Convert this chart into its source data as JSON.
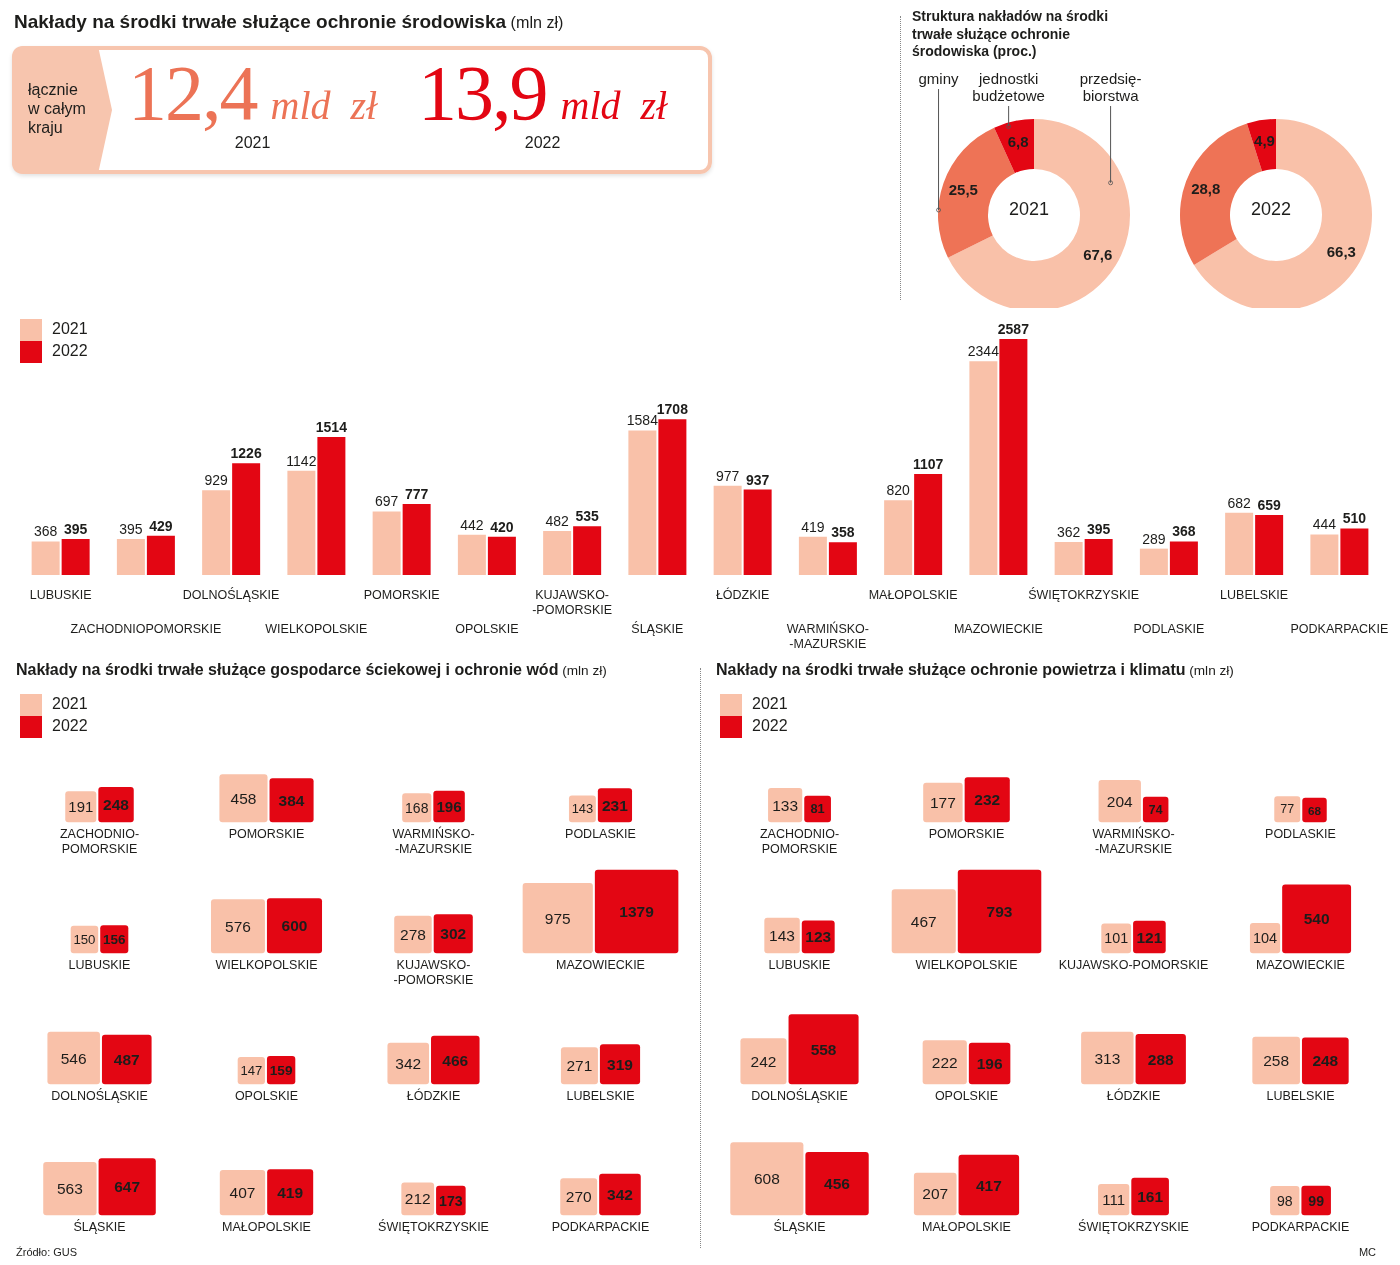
{
  "chart_data": [
    {
      "type": "other",
      "title": "Nakłady na środki trwałe służące ochronie środowiska (mln zł)",
      "annotations": [
        "łącznie w całym kraju",
        "12,4 mld zł",
        "2021",
        "13,9 mld zł",
        "2022"
      ]
    },
    {
      "type": "donut",
      "title": "Struktura nakładów na środki trwałe służące ochronie środowiska (proc.)",
      "categories": [
        "przedsię-\nbiorstwa",
        "gminy",
        "jednostki\nbudżetowe"
      ],
      "values": [
        67.6,
        25.5,
        6.8
      ],
      "colors": [
        "#f9c1a9",
        "#ee7356",
        "#e30613"
      ],
      "value_labels": [
        "67,6",
        "25,5",
        "6,8"
      ],
      "annotations": [
        "2021"
      ]
    },
    {
      "type": "donut",
      "categories": [
        null,
        null,
        null
      ],
      "values": [
        66.3,
        28.8,
        4.9
      ],
      "colors": [
        "#f9c1a9",
        "#ee7356",
        "#e30613"
      ],
      "value_labels": [
        "66,3",
        "28,8",
        "4,9"
      ],
      "annotations": [
        "2022"
      ]
    },
    {
      "type": "bar",
      "categories": [
        "LUBUSKIE",
        "ZACHODNIOPOMORSKIE",
        "DOLNOŚLĄSKIE",
        "WIELKOPOLSKIE",
        "POMORSKIE",
        "OPOLSKIE",
        "KUJAWSKO-\n-POMORSKIE",
        "ŚLĄSKIE",
        "ŁÓDZKIE",
        "WARMIŃSKO-\n-MAZURSKIE",
        "MAŁOPOLSKIE",
        "MAZOWIECKIE",
        "ŚWIĘTOKRZYSKIE",
        "PODLASKIE",
        "LUBELSKIE",
        "PODKARPACKIE"
      ],
      "series": [
        {
          "name": "2021",
          "color": "#f9c1a9",
          "values": [
            368,
            395,
            929,
            1142,
            697,
            442,
            482,
            1584,
            977,
            419,
            820,
            2344,
            362,
            289,
            682,
            444
          ]
        },
        {
          "name": "2022",
          "color": "#e30613",
          "values": [
            395,
            429,
            1226,
            1514,
            777,
            420,
            535,
            1708,
            937,
            358,
            1107,
            2587,
            395,
            368,
            659,
            510
          ]
        }
      ],
      "data_labels": true,
      "legend": "top left"
    },
    {
      "type": "other",
      "title": "Nakłady na środki trwałe służące gospodarce ściekowej i ochronie wód (mln zł)",
      "categories": [
        "ZACHODNIO-\nPOMORSKIE",
        "POMORSKIE",
        "WARMIŃSKO-\n-MAZURSKIE",
        "PODLASKIE",
        "LUBUSKIE",
        "WIELKOPOLSKIE",
        "KUJAWSKO-\n-POMORSKIE",
        "MAZOWIECKIE",
        "DOLNOŚLĄSKIE",
        "OPOLSKIE",
        "ŁÓDZKIE",
        "LUBELSKIE",
        "ŚLĄSKIE",
        "MAŁOPOLSKIE",
        "ŚWIĘTOKRZYSKIE",
        "PODKARPACKIE"
      ],
      "series": [
        {
          "name": "2021",
          "color": "#f9c1a9",
          "values": [
            191,
            458,
            168,
            143,
            150,
            576,
            278,
            975,
            546,
            147,
            342,
            271,
            563,
            407,
            212,
            270
          ]
        },
        {
          "name": "2022",
          "color": "#e30613",
          "values": [
            248,
            384,
            196,
            231,
            156,
            600,
            302,
            1379,
            487,
            159,
            466,
            319,
            647,
            419,
            173,
            342
          ]
        }
      ],
      "data_labels": true,
      "legend": "top left",
      "annotations": [
        "Źródło: GUS"
      ]
    },
    {
      "type": "other",
      "title": "Nakłady na środki trwałe służące ochronie powietrza i klimatu (mln zł)",
      "categories": [
        "ZACHODNIO-\nPOMORSKIE",
        "POMORSKIE",
        "WARMIŃSKO-\n-MAZURSKIE",
        "PODLASKIE",
        "LUBUSKIE",
        "WIELKOPOLSKIE",
        "KUJAWSKO-POMORSKIE",
        "MAZOWIECKIE",
        "DOLNOŚLĄSKIE",
        "OPOLSKIE",
        "ŁÓDZKIE",
        "LUBELSKIE",
        "ŚLĄSKIE",
        "MAŁOPOLSKIE",
        "ŚWIĘTOKRZYSKIE",
        "PODKARPACKIE"
      ],
      "series": [
        {
          "name": "2021",
          "color": "#f9c1a9",
          "values": [
            133,
            177,
            204,
            77,
            143,
            467,
            101,
            104,
            242,
            222,
            313,
            258,
            608,
            207,
            111,
            98
          ]
        },
        {
          "name": "2022",
          "color": "#e30613",
          "values": [
            81,
            232,
            74,
            68,
            123,
            793,
            121,
            540,
            558,
            196,
            288,
            248,
            456,
            417,
            161,
            99
          ]
        }
      ],
      "data_labels": true,
      "legend": "top left",
      "annotations": [
        "MC"
      ]
    }
  ]
}
